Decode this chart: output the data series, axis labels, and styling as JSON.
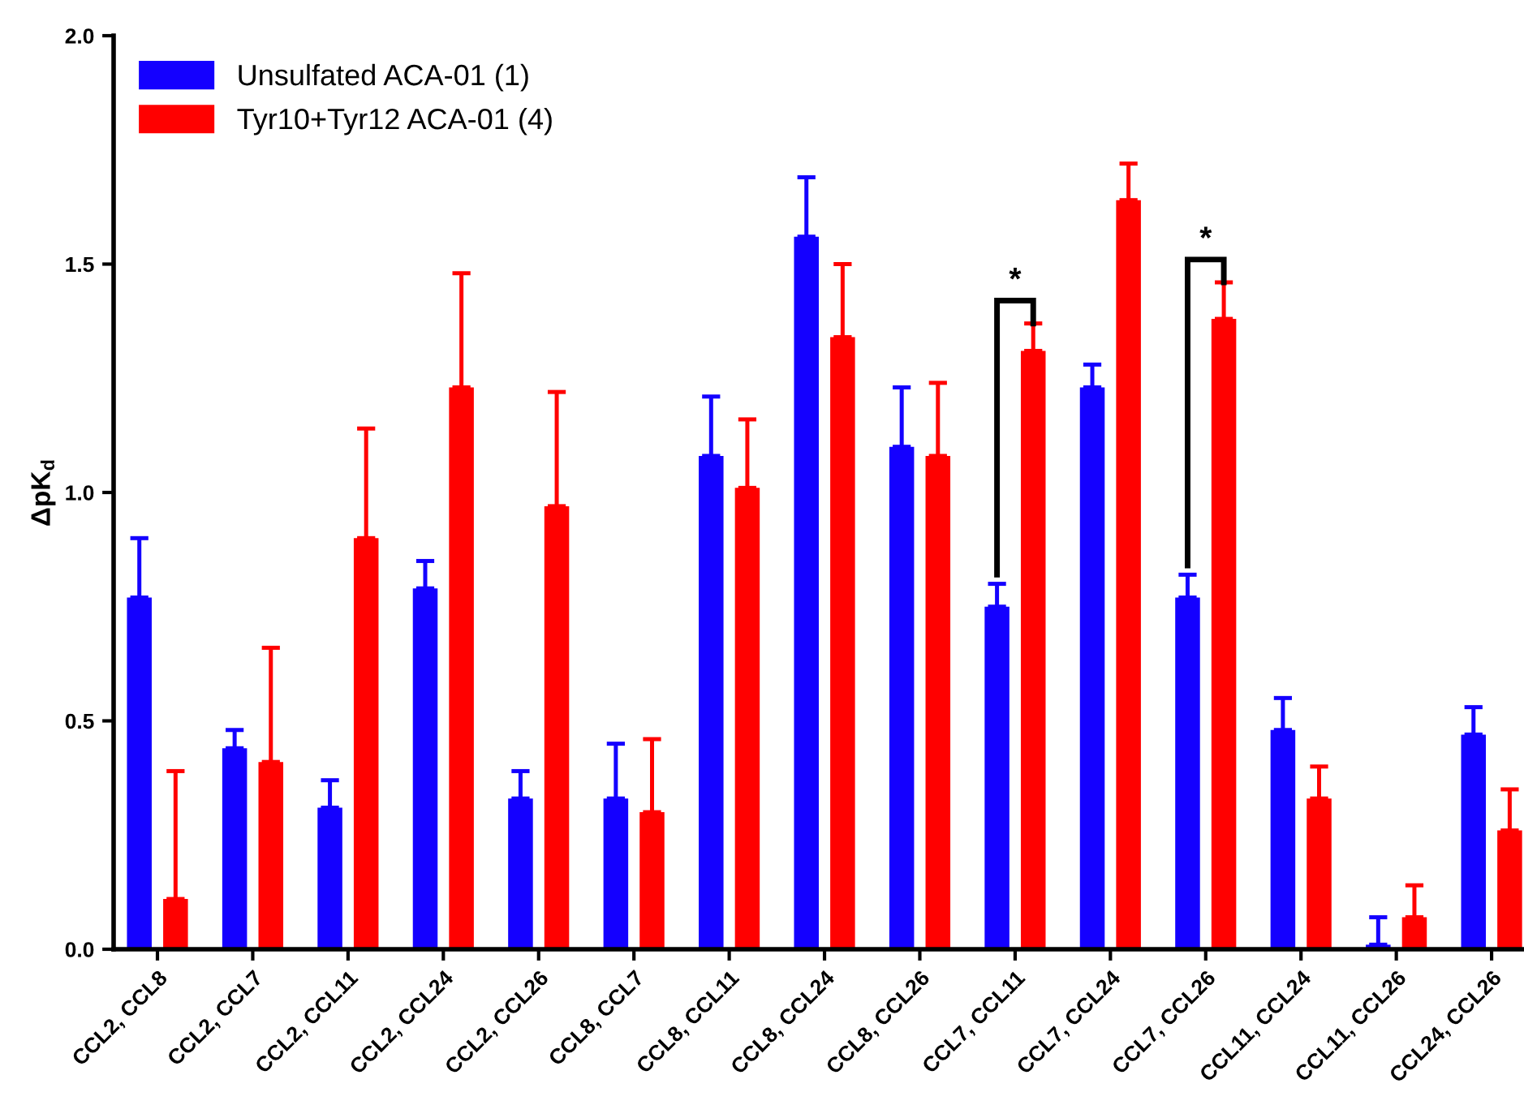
{
  "chart_data": {
    "type": "bar",
    "ylabel": "ΔpK$_{d}$",
    "categories": [
      "CCL2, CCL8",
      "CCL2, CCL7",
      "CCL2, CCL11",
      "CCL2, CCL24",
      "CCL2, CCL26",
      "CCL8, CCL7",
      "CCL8, CCL11",
      "CCL8, CCL24",
      "CCL8, CCL26",
      "CCL7, CCL11",
      "CCL7, CCL24",
      "CCL7, CCL26",
      "CCL11, CCL24",
      "CCL11, CCL26",
      "CCL24, CCL26"
    ],
    "series": [
      {
        "name": "Unsulfated ACA-01 (1)",
        "color": "#1400ff",
        "values": [
          0.77,
          0.44,
          0.31,
          0.79,
          0.33,
          0.33,
          1.08,
          1.56,
          1.1,
          0.75,
          1.23,
          0.77,
          0.48,
          0.01,
          0.47
        ],
        "errors": [
          [
            0.77,
            0.9
          ],
          [
            0.44,
            0.48
          ],
          [
            0.31,
            0.37
          ],
          [
            0.79,
            0.85
          ],
          [
            0.33,
            0.39
          ],
          [
            0.33,
            0.45
          ],
          [
            1.08,
            1.21
          ],
          [
            1.56,
            1.69
          ],
          [
            1.1,
            1.23
          ],
          [
            0.75,
            0.8
          ],
          [
            1.23,
            1.28
          ],
          [
            0.77,
            0.82
          ],
          [
            0.48,
            0.55
          ],
          [
            0.01,
            0.07
          ],
          [
            0.47,
            0.53
          ]
        ]
      },
      {
        "name": "Tyr10+Tyr12 ACA-01 (4)",
        "color": "#ff0000",
        "values": [
          0.11,
          0.41,
          0.9,
          1.23,
          0.97,
          0.3,
          1.01,
          1.34,
          1.08,
          1.31,
          1.64,
          1.38,
          0.33,
          0.07,
          0.26
        ],
        "errors": [
          [
            0.11,
            0.39
          ],
          [
            0.41,
            0.66
          ],
          [
            0.9,
            1.14
          ],
          [
            1.23,
            1.48
          ],
          [
            0.97,
            1.22
          ],
          [
            0.3,
            0.46
          ],
          [
            1.01,
            1.16
          ],
          [
            1.34,
            1.5
          ],
          [
            1.08,
            1.24
          ],
          [
            1.31,
            1.37
          ],
          [
            1.64,
            1.72
          ],
          [
            1.38,
            1.46
          ],
          [
            0.33,
            0.4
          ],
          [
            0.07,
            0.14
          ],
          [
            0.26,
            0.35
          ]
        ]
      }
    ],
    "annotations": [
      "*",
      "*"
    ],
    "ylim": [
      0,
      2.0
    ],
    "yticks": [
      {
        "value": 0,
        "label": "0.0"
      },
      0.5,
      {
        "value": 1,
        "label": "1.0"
      },
      1.5,
      {
        "value": 2,
        "label": "2.0"
      }
    ],
    "grid": false,
    "legend": "top left"
  }
}
